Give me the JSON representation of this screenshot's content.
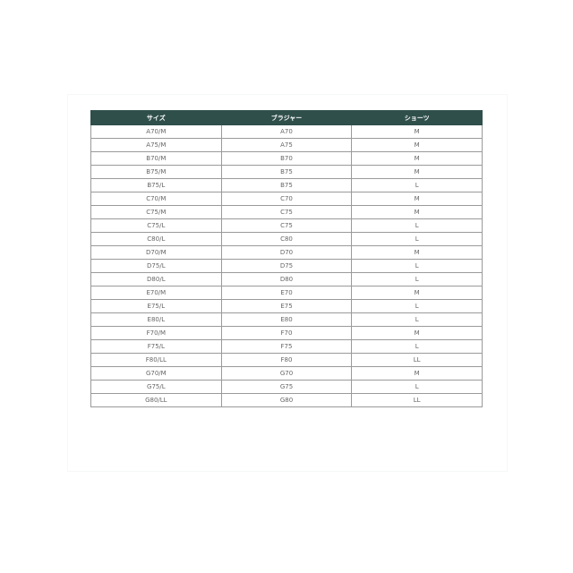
{
  "table": {
    "headers": [
      "サイズ",
      "ブラジャー",
      "ショーツ"
    ],
    "rows": [
      [
        "A70/M",
        "A70",
        "M"
      ],
      [
        "A75/M",
        "A75",
        "M"
      ],
      [
        "B70/M",
        "B70",
        "M"
      ],
      [
        "B75/M",
        "B75",
        "M"
      ],
      [
        "B75/L",
        "B75",
        "L"
      ],
      [
        "C70/M",
        "C70",
        "M"
      ],
      [
        "C75/M",
        "C75",
        "M"
      ],
      [
        "C75/L",
        "C75",
        "L"
      ],
      [
        "C80/L",
        "C80",
        "L"
      ],
      [
        "D70/M",
        "D70",
        "M"
      ],
      [
        "D75/L",
        "D75",
        "L"
      ],
      [
        "D80/L",
        "D80",
        "L"
      ],
      [
        "E70/M",
        "E70",
        "M"
      ],
      [
        "E75/L",
        "E75",
        "L"
      ],
      [
        "E80/L",
        "E80",
        "L"
      ],
      [
        "F70/M",
        "F70",
        "M"
      ],
      [
        "F75/L",
        "F75",
        "L"
      ],
      [
        "F80/LL",
        "F80",
        "LL"
      ],
      [
        "G70/M",
        "G70",
        "M"
      ],
      [
        "G75/L",
        "G75",
        "L"
      ],
      [
        "G80/LL",
        "G80",
        "LL"
      ]
    ]
  },
  "colors": {
    "header_bg": "#2f4f4b"
  }
}
